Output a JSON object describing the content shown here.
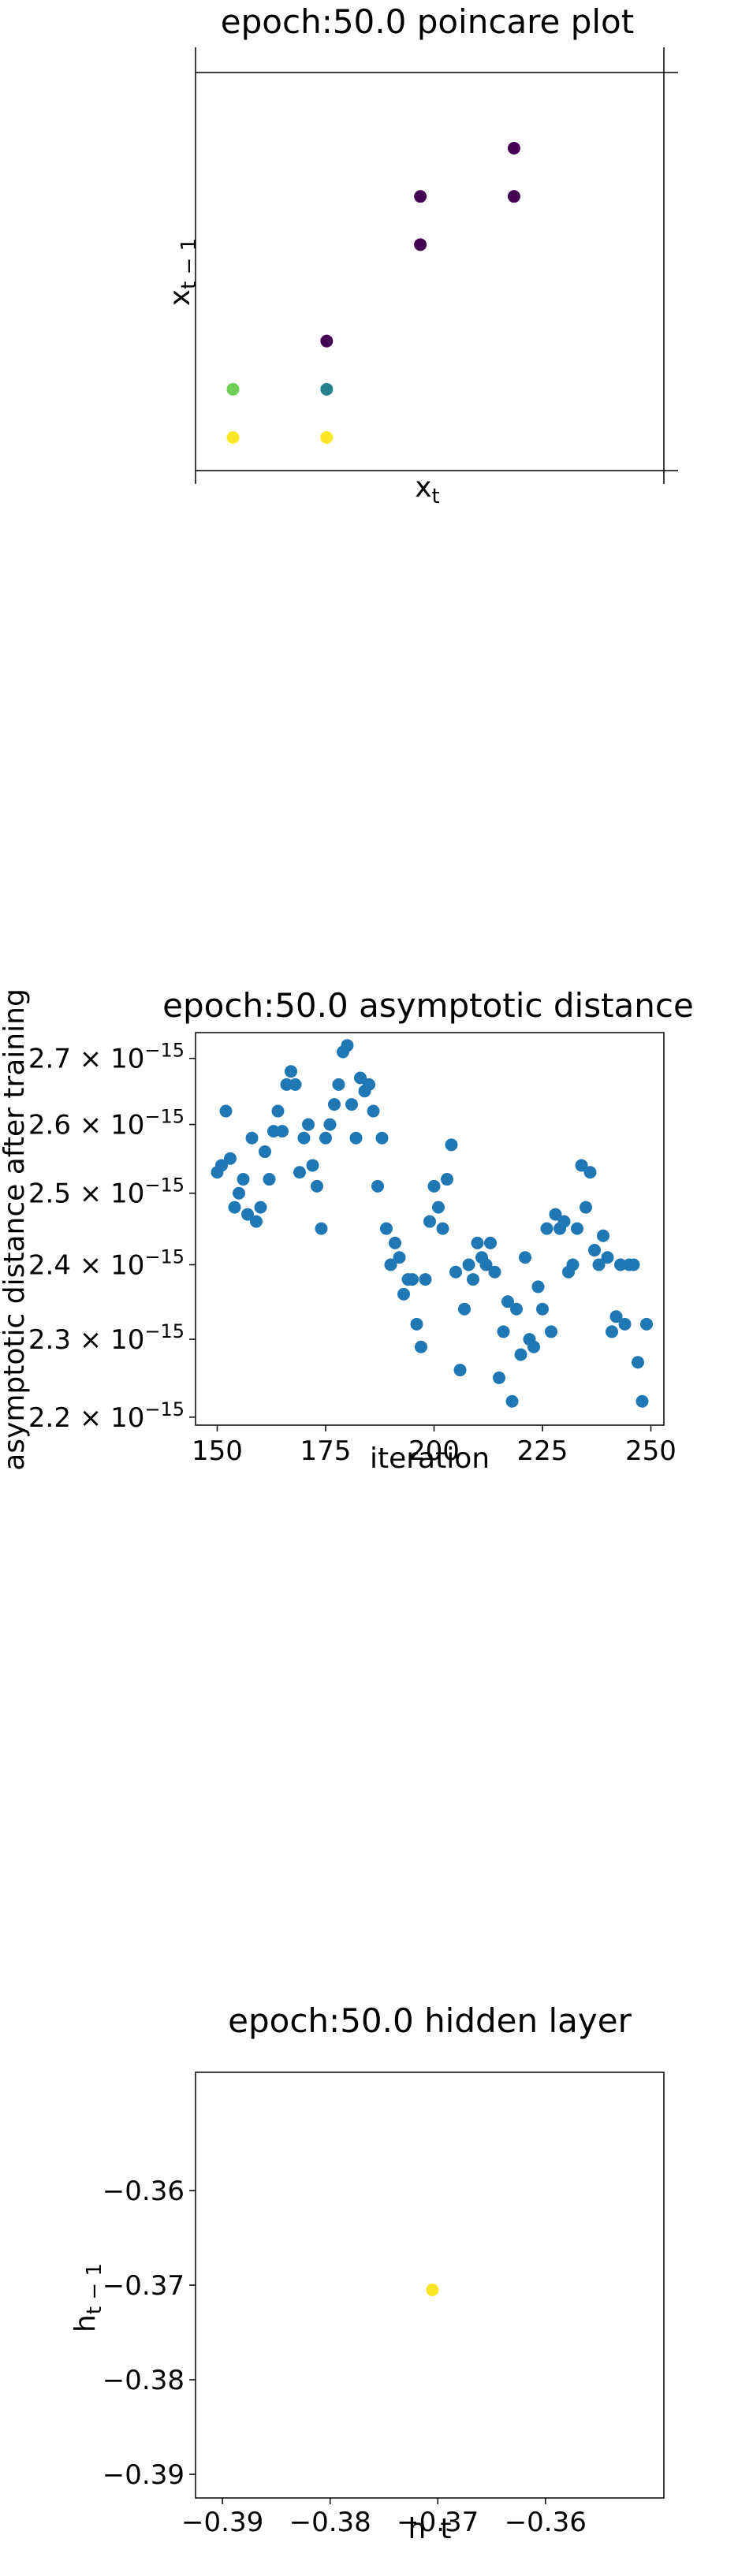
{
  "chart_data": [
    {
      "type": "scatter",
      "title": "epoch:50.0 poincare plot",
      "xlabel": "x_t",
      "ylabel": "x_{t-1}",
      "xlim": [
        -0.4,
        4.6
      ],
      "ylim": [
        -1.5,
        7.2
      ],
      "axes": "centered",
      "colormap": "viridis",
      "points": [
        {
          "x": 3.0,
          "y": 6.0,
          "color": "#440154"
        },
        {
          "x": 3.0,
          "y": 5.0,
          "color": "#440154"
        },
        {
          "x": 2.0,
          "y": 5.0,
          "color": "#440154"
        },
        {
          "x": 2.0,
          "y": 4.0,
          "color": "#440154"
        },
        {
          "x": 1.0,
          "y": 2.0,
          "color": "#440154"
        },
        {
          "x": 1.0,
          "y": 1.0,
          "color": "#26828e"
        },
        {
          "x": 0.0,
          "y": 1.0,
          "color": "#6ece58"
        },
        {
          "x": 0.0,
          "y": 0.0,
          "color": "#fde725"
        },
        {
          "x": 1.0,
          "y": 0.0,
          "color": "#fde725"
        }
      ]
    },
    {
      "type": "scatter",
      "title": "epoch:50.0 asymptotic distance",
      "xlabel": "iteration",
      "ylabel": "asymptotic distance after training",
      "xlim": [
        145,
        253
      ],
      "ylim": [
        2.19,
        2.74
      ],
      "yscale": "log",
      "xticks": [
        150,
        175,
        200,
        225,
        250
      ],
      "yticks": [
        {
          "value": 2.2,
          "mantissa": "2.2",
          "label": "2.2 × 10^−15"
        },
        {
          "value": 2.3,
          "mantissa": "2.3",
          "label": "2.3 × 10^−15"
        },
        {
          "value": 2.4,
          "mantissa": "2.4",
          "label": "2.4 × 10^−15"
        },
        {
          "value": 2.5,
          "mantissa": "2.5",
          "label": "2.5 × 10^−15"
        },
        {
          "value": 2.6,
          "mantissa": "2.6",
          "label": "2.6 × 10^−15"
        },
        {
          "value": 2.7,
          "mantissa": "2.7",
          "label": "2.7 × 10^−15"
        }
      ],
      "y_exponent": "−15",
      "point_color": "#1f77b4",
      "x": [
        150,
        151,
        152,
        153,
        154,
        155,
        156,
        157,
        158,
        159,
        160,
        161,
        162,
        163,
        164,
        165,
        166,
        167,
        168,
        169,
        170,
        171,
        172,
        173,
        174,
        175,
        176,
        177,
        178,
        179,
        180,
        181,
        182,
        183,
        184,
        185,
        186,
        187,
        188,
        189,
        190,
        191,
        192,
        193,
        194,
        195,
        196,
        197,
        198,
        199,
        200,
        201,
        202,
        203,
        204,
        205,
        206,
        207,
        208,
        209,
        210,
        211,
        212,
        213,
        214,
        215,
        216,
        217,
        218,
        219,
        220,
        221,
        222,
        223,
        224,
        225,
        226,
        227,
        228,
        229,
        230,
        231,
        232,
        233,
        234,
        235,
        236,
        237,
        238,
        239,
        240,
        241,
        242,
        243,
        244,
        245,
        246,
        247,
        248,
        249
      ],
      "y": [
        2.53,
        2.54,
        2.62,
        2.55,
        2.48,
        2.5,
        2.52,
        2.47,
        2.58,
        2.46,
        2.48,
        2.56,
        2.52,
        2.59,
        2.62,
        2.59,
        2.66,
        2.68,
        2.66,
        2.53,
        2.58,
        2.6,
        2.54,
        2.51,
        2.45,
        2.58,
        2.6,
        2.63,
        2.66,
        2.71,
        2.72,
        2.63,
        2.58,
        2.67,
        2.65,
        2.66,
        2.62,
        2.51,
        2.58,
        2.45,
        2.4,
        2.43,
        2.41,
        2.36,
        2.38,
        2.38,
        2.32,
        2.29,
        2.38,
        2.46,
        2.51,
        2.48,
        2.45,
        2.52,
        2.57,
        2.39,
        2.26,
        2.34,
        2.4,
        2.38,
        2.43,
        2.41,
        2.4,
        2.43,
        2.39,
        2.25,
        2.31,
        2.35,
        2.22,
        2.34,
        2.28,
        2.41,
        2.3,
        2.29,
        2.37,
        2.34,
        2.45,
        2.31,
        2.47,
        2.45,
        2.46,
        2.39,
        2.4,
        2.45,
        2.54,
        2.48,
        2.53,
        2.42,
        2.4,
        2.44,
        2.41,
        2.31,
        2.33,
        2.4,
        2.32,
        2.4,
        2.4,
        2.27,
        2.22,
        2.32
      ]
    },
    {
      "type": "scatter",
      "title": "epoch:50.0 hidden layer",
      "xlabel": "h_t",
      "ylabel": "h_{t-1}",
      "xlim": [
        -0.3925,
        -0.349
      ],
      "ylim": [
        -0.3925,
        -0.3475
      ],
      "xticks": [
        -0.39,
        -0.38,
        -0.37,
        -0.36
      ],
      "yticks": [
        -0.39,
        -0.38,
        -0.37,
        -0.36
      ],
      "xtick_labels": [
        "−0.39",
        "−0.38",
        "−0.37",
        "−0.36"
      ],
      "ytick_labels": [
        "−0.39",
        "−0.38",
        "−0.37",
        "−0.36"
      ],
      "points": [
        {
          "x": -0.3705,
          "y": -0.3705,
          "color": "#fde725"
        }
      ]
    }
  ]
}
